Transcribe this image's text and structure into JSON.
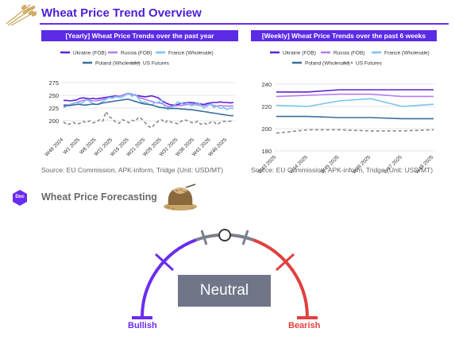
{
  "header": {
    "title": "Wheat Price Trend Overview"
  },
  "forecast": {
    "title": "Wheat Price Forecasting",
    "doc_badge": "Doc",
    "status": "Neutral",
    "left_label": "Bullish",
    "right_label": "Bearish",
    "colors": {
      "bullish": "#6a2cf0",
      "neutral": "#7a7f8c",
      "bearish": "#e04040"
    }
  },
  "chart_data": [
    {
      "type": "line",
      "title": "[Yearly] Wheat Price Trends over the past year",
      "source": "Source: EU Commission, APK-inform, Tridge  (Unit: USD/MT)",
      "ylim": [
        175,
        275
      ],
      "yticks": [
        200,
        225,
        250,
        275
      ],
      "grid": true,
      "legend_position": "top",
      "xtick_labels": [
        "W48 2024",
        "W1 2025",
        "W6 2025",
        "W11 2025",
        "W16 2025",
        "W21 2025",
        "W26 2025",
        "W31 2025",
        "W36 2025",
        "W41 2025",
        "W46 2025"
      ],
      "x_count": 53,
      "series": [
        {
          "name": "Ukraine (FOB)",
          "color": "#5b21d6",
          "dash": false,
          "values": [
            240,
            240,
            239,
            240,
            241,
            244,
            245,
            244,
            243,
            244,
            243,
            244,
            245,
            246,
            247,
            248,
            249,
            248,
            250,
            252,
            253,
            252,
            250,
            249,
            248,
            247,
            248,
            249,
            247,
            245,
            240,
            236,
            233,
            231,
            231,
            232,
            234,
            235,
            236,
            236,
            235,
            234,
            233,
            232,
            234,
            235,
            236,
            236,
            237,
            236,
            236,
            235,
            236
          ]
        },
        {
          "name": "Russia (FOB)",
          "color": "#b57bee",
          "dash": false,
          "values": [
            232,
            231,
            232,
            234,
            236,
            238,
            240,
            241,
            240,
            239,
            239,
            240,
            242,
            244,
            245,
            246,
            248,
            248,
            250,
            253,
            254,
            252,
            250,
            246,
            244,
            242,
            240,
            238,
            236,
            235,
            234,
            231,
            228,
            228,
            229,
            230,
            230,
            231,
            232,
            233,
            232,
            231,
            230,
            230,
            231,
            232,
            230,
            229,
            230,
            229,
            229,
            229,
            229
          ]
        },
        {
          "name": "France (Wholesale)",
          "color": "#7cc4f0",
          "dash": false,
          "values": [
            226,
            229,
            232,
            234,
            236,
            233,
            236,
            242,
            238,
            234,
            232,
            234,
            238,
            242,
            246,
            244,
            247,
            246,
            246,
            251,
            254,
            248,
            252,
            243,
            236,
            237,
            233,
            231,
            236,
            236,
            241,
            226,
            222,
            225,
            231,
            237,
            234,
            233,
            235,
            229,
            231,
            236,
            231,
            225,
            229,
            233,
            226,
            229,
            224,
            226,
            222,
            225,
            224
          ]
        },
        {
          "name": "Poland (Wholesale)",
          "color": "#3a6e9c",
          "dash": false,
          "values": [
            229,
            230,
            230,
            231,
            232,
            232,
            231,
            231,
            232,
            233,
            232,
            233,
            235,
            236,
            237,
            238,
            239,
            240,
            241,
            242,
            242,
            240,
            238,
            236,
            234,
            233,
            232,
            231,
            229,
            227,
            226,
            225,
            225,
            224,
            224,
            224,
            223,
            223,
            222,
            222,
            221,
            220,
            219,
            218,
            217,
            216,
            215,
            214,
            213,
            212,
            211,
            210,
            210
          ]
        },
        {
          "name": "US Futures",
          "color": "#8a8a8a",
          "dash": true,
          "values": [
            198,
            192,
            194,
            197,
            193,
            195,
            199,
            196,
            200,
            196,
            197,
            202,
            199,
            218,
            208,
            204,
            197,
            195,
            202,
            200,
            196,
            201,
            199,
            207,
            203,
            196,
            189,
            186,
            194,
            199,
            202,
            196,
            201,
            197,
            196,
            194,
            199,
            202,
            200,
            197,
            195,
            199,
            193,
            196,
            192,
            197,
            198,
            192,
            197,
            199,
            198,
            199,
            201
          ]
        }
      ]
    },
    {
      "type": "line",
      "title": "[Weekly] Wheat Price Trends over the past 6 weeks",
      "source": "Source: EU Commission, APK-inform, Tridge  (Unit: USD/MT)",
      "ylim": [
        180,
        240
      ],
      "yticks": [
        180,
        200,
        220,
        240
      ],
      "grid": true,
      "legend_position": "top",
      "categories": [
        "W43 2025",
        "W44 2025",
        "W45 2025",
        "W46 2025",
        "W47 2025",
        "W48 2025"
      ],
      "series": [
        {
          "name": "Ukraine (FOB)",
          "color": "#5b21d6",
          "dash": false,
          "values": [
            233,
            233,
            235,
            235,
            235,
            235
          ]
        },
        {
          "name": "Russia (FOB)",
          "color": "#b57bee",
          "dash": false,
          "values": [
            229,
            230,
            231,
            231,
            229,
            229
          ]
        },
        {
          "name": "France (Wholesale)",
          "color": "#7cc4f0",
          "dash": false,
          "values": [
            221,
            220,
            225,
            227,
            220,
            222
          ]
        },
        {
          "name": "Poland (Wholesale)",
          "color": "#3a6e9c",
          "dash": false,
          "values": [
            211,
            211,
            210,
            210,
            209,
            209
          ]
        },
        {
          "name": "US Futures",
          "color": "#8a8a8a",
          "dash": true,
          "values": [
            196,
            199,
            199,
            198,
            198,
            199
          ]
        }
      ]
    }
  ]
}
